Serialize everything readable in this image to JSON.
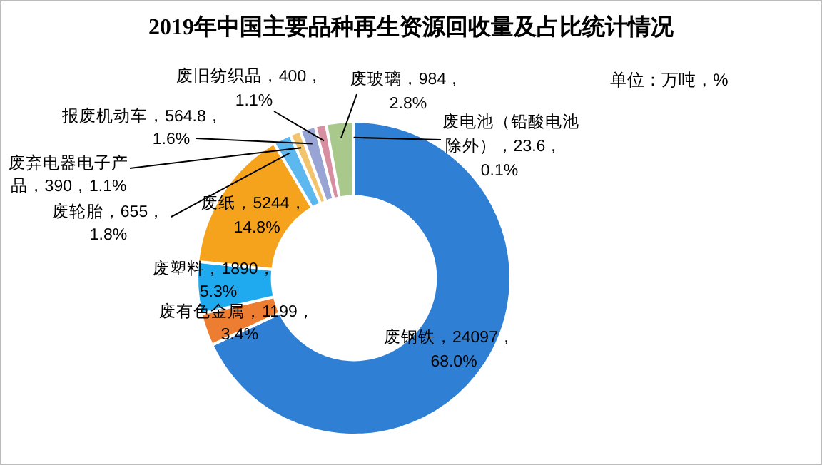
{
  "chart_data": {
    "type": "donut",
    "title": "2019年中国主要品种再生资源回收量及占比统计情况",
    "categories": [
      "废钢铁",
      "废有色金属",
      "废塑料",
      "废纸",
      "废轮胎",
      "废弃电器电子产品",
      "报废机动车",
      "废旧纺织品",
      "废玻璃",
      "废电池（铅酸电池除外）"
    ],
    "values": [
      24097,
      1199,
      1890,
      5244,
      655,
      390,
      564.8,
      400,
      984,
      23.6
    ],
    "value_labels": [
      "24097，68.0%",
      "1199，3.4%",
      "1890，5.3%",
      "5244，14.8%",
      "655，1.8%",
      "390，1.1%",
      "564.8，1.6%",
      "400，1.1%",
      "984，2.8%",
      "23.6，0.1%"
    ],
    "colors": [
      "#2f80d4",
      "#ed7d31",
      "#1fa9ef",
      "#f5a31c",
      "#5db8f0",
      "#f2c46e",
      "#98a4d4",
      "#d68ea0",
      "#a8c98b",
      "#7f9fcf"
    ],
    "annotations": [
      "单位：万吨，%"
    ]
  }
}
